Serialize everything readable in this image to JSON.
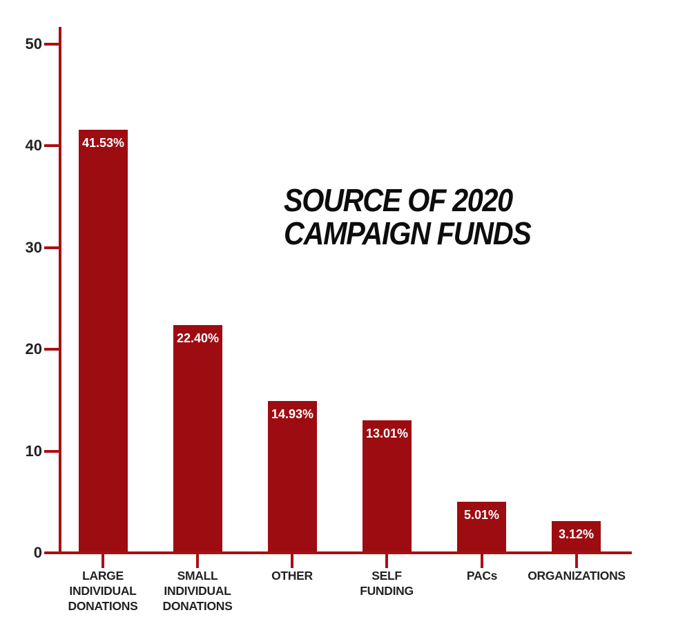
{
  "title": {
    "line1": "SOURCE OF 2020",
    "line2": "CAMPAIGN FUNDS"
  },
  "chart_data": {
    "type": "bar",
    "title": "SOURCE OF 2020 CAMPAIGN FUNDS",
    "categories": [
      "LARGE INDIVIDUAL DONATIONS",
      "SMALL INDIVIDUAL DONATIONS",
      "OTHER",
      "SELF FUNDING",
      "PACs",
      "ORGANIZATIONS"
    ],
    "category_lines": [
      [
        "LARGE",
        "INDIVIDUAL",
        "DONATIONS"
      ],
      [
        "SMALL",
        "INDIVIDUAL",
        "DONATIONS"
      ],
      [
        "OTHER"
      ],
      [
        "SELF",
        "FUNDING"
      ],
      [
        "PACs"
      ],
      [
        "ORGANIZATIONS"
      ]
    ],
    "values": [
      41.53,
      22.4,
      14.93,
      13.01,
      5.01,
      3.12
    ],
    "value_labels": [
      "41.53%",
      "22.40%",
      "14.93%",
      "13.01%",
      "5.01%",
      "3.12%"
    ],
    "xlabel": "",
    "ylabel": "",
    "y_ticks": [
      0,
      10,
      20,
      30,
      40,
      50
    ],
    "ylim": [
      0,
      52
    ],
    "grid": false,
    "legend": "none",
    "colors": {
      "bar": "#9d0c10",
      "axis": "#a90f12",
      "value_label": "#ffffff",
      "tick_label": "#232323",
      "title": "#0d0d0d"
    }
  }
}
